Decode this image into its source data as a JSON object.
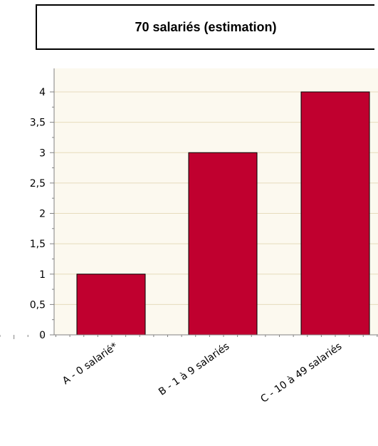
{
  "chart_data": {
    "type": "bar",
    "title": "70 salariés (estimation)",
    "categories": [
      "A - 0 salarié*",
      "B - 1 à 9 salariés",
      "C - 10 à 49 salariés"
    ],
    "values": [
      1,
      3,
      4
    ],
    "ylim": [
      0,
      4.3
    ],
    "yticks": [
      "0",
      "0,5",
      "1",
      "1,5",
      "2",
      "2,5",
      "3",
      "3,5",
      "4"
    ],
    "ytick_values": [
      0,
      0.5,
      1,
      1.5,
      2,
      2.5,
      3,
      3.5,
      4
    ],
    "xlabel": "",
    "ylabel": "",
    "grid": true,
    "bar_color": "#c0002f",
    "plot_background": "#fcf9ef",
    "grid_color": "#e6dcbc"
  }
}
